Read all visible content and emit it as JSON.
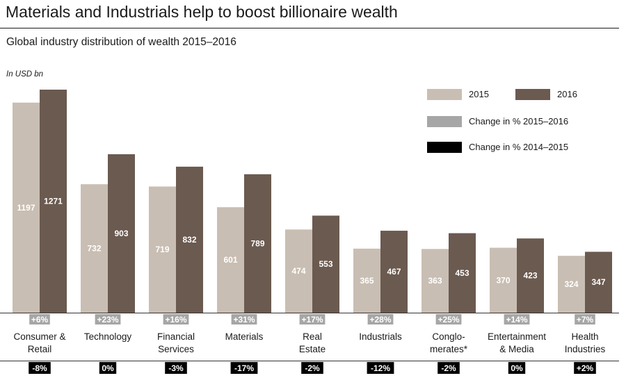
{
  "header": {
    "title": "Materials and Industrials help to boost billionaire wealth",
    "subtitle": "Global industry distribution of wealth 2015–2016",
    "unit_label": "In USD bn"
  },
  "legend": {
    "items": [
      {
        "label": "2015",
        "color": "#c9beb3"
      },
      {
        "label": "2016",
        "color": "#6b5a50"
      },
      {
        "label": "Change in % 2015–2016",
        "color": "#a6a6a6"
      },
      {
        "label": "Change in % 2014–2015",
        "color": "#000000"
      }
    ]
  },
  "chart_data": {
    "type": "bar",
    "title": "Materials and Industrials help to boost billionaire wealth",
    "subtitle": "Global industry distribution of wealth 2015–2016",
    "ylabel": "In USD bn",
    "ylim": [
      0,
      1271
    ],
    "categories": [
      [
        "Consumer &",
        "Retail"
      ],
      [
        "Technology"
      ],
      [
        "Financial",
        "Services"
      ],
      [
        "Materials"
      ],
      [
        "Real",
        "Estate"
      ],
      [
        "Industrials"
      ],
      [
        "Conglo-",
        "merates*"
      ],
      [
        "Entertainment",
        "& Media"
      ],
      [
        "Health",
        "Industries"
      ]
    ],
    "series": [
      {
        "name": "2015",
        "color": "#c9beb3",
        "values": [
          1197,
          732,
          719,
          601,
          474,
          365,
          363,
          370,
          324
        ]
      },
      {
        "name": "2016",
        "color": "#6b5a50",
        "values": [
          1271,
          903,
          832,
          789,
          553,
          467,
          453,
          423,
          347
        ]
      }
    ],
    "change_2015_2016": [
      "+6%",
      "+23%",
      "+16%",
      "+31%",
      "+17%",
      "+28%",
      "+25%",
      "+14%",
      "+7%"
    ],
    "change_2014_2015": [
      "-8%",
      "0%",
      "-3%",
      "-17%",
      "-2%",
      "-12%",
      "-2%",
      "0%",
      "+2%"
    ]
  }
}
